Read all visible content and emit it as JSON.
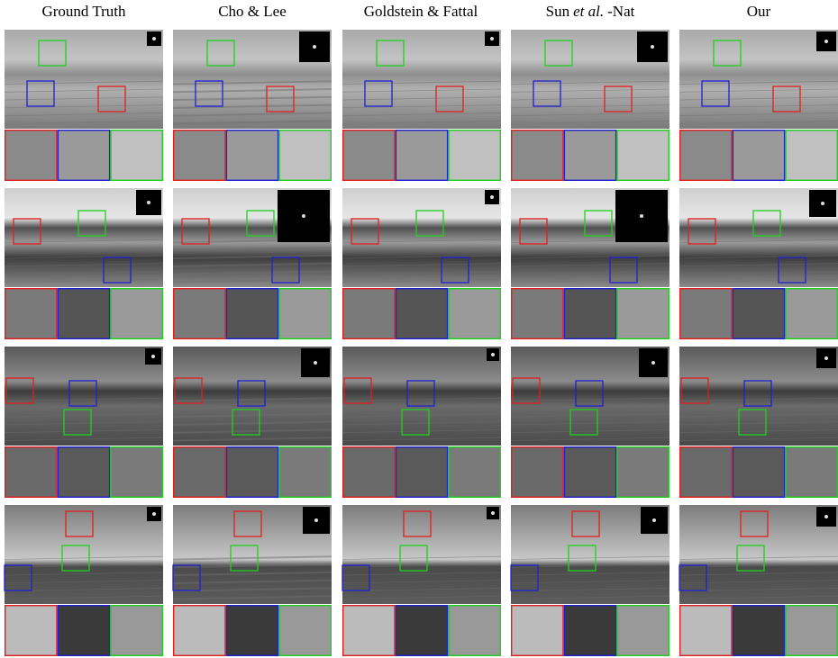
{
  "headers": [
    "Ground Truth",
    "Cho & Lee",
    "Goldstein & Fattal",
    {
      "name": "Sun",
      "italic": "et al.",
      "suffix": "-Nat"
    },
    "Our"
  ]
}
